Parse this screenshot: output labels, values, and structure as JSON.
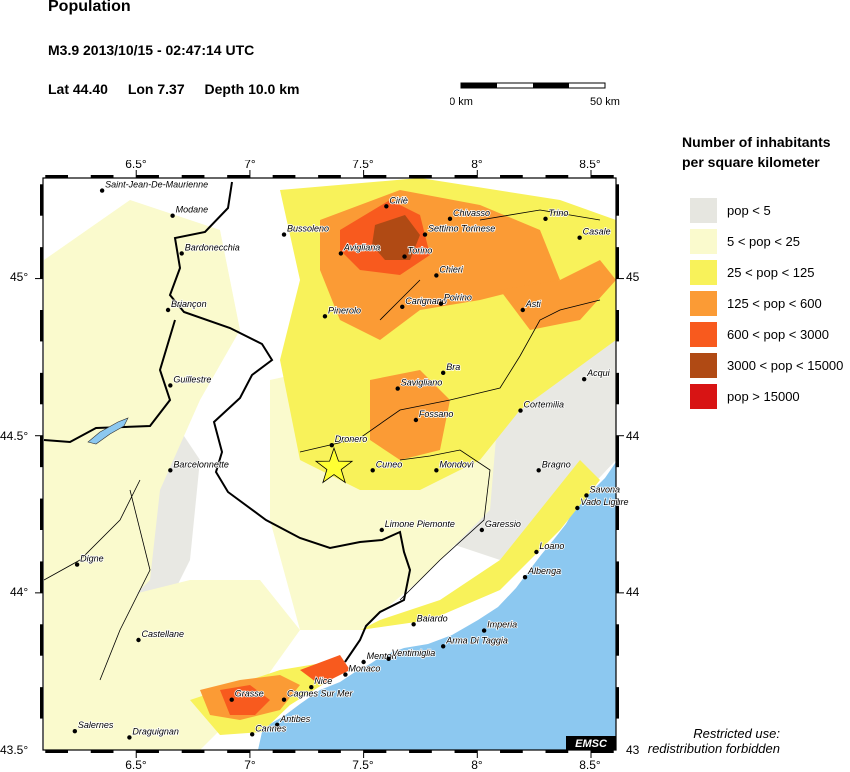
{
  "header": {
    "title": "Population",
    "event": "M3.9  2013/10/15 - 02:47:14 UTC",
    "lat": "Lat 44.40",
    "lon": "Lon  7.37",
    "depth": "Depth  10.0 km"
  },
  "scale": {
    "left_label": "0 km",
    "right_label": "50 km"
  },
  "legend": {
    "title_line1": "Number of inhabitants",
    "title_line2": "per square kilometer",
    "items": [
      {
        "label": "pop < 5",
        "color": "#e6e6e0"
      },
      {
        "label": "5 < pop < 25",
        "color": "#fafacd"
      },
      {
        "label": "25 < pop < 125",
        "color": "#f8f25a"
      },
      {
        "label": "125 < pop < 600",
        "color": "#fb9b35"
      },
      {
        "label": "600 < pop < 3000",
        "color": "#f85a1e"
      },
      {
        "label": "3000 < pop < 15000",
        "color": "#b04a14"
      },
      {
        "label": "pop > 15000",
        "color": "#d81414"
      }
    ]
  },
  "map": {
    "lon_ticks": [
      "6.5°",
      "7°",
      "7.5°",
      "8°",
      "8.5°"
    ],
    "lat_ticks": [
      "45°",
      "44.5°",
      "44°"
    ],
    "corner_label": "43.5°",
    "sea_color": "#8cc8f0",
    "epicenter": {
      "lat": 44.4,
      "lon": 7.37,
      "color": "#ffff33"
    },
    "watermark": "EMSC",
    "cities": [
      {
        "name": "Saint-Jean-De-Maurienne",
        "lon": 6.35,
        "lat": 45.28
      },
      {
        "name": "Modane",
        "lon": 6.66,
        "lat": 45.2
      },
      {
        "name": "Bussoleno",
        "lon": 7.15,
        "lat": 45.14
      },
      {
        "name": "Ciriè",
        "lon": 7.6,
        "lat": 45.23
      },
      {
        "name": "Chivasso",
        "lon": 7.88,
        "lat": 45.19
      },
      {
        "name": "Trino",
        "lon": 8.3,
        "lat": 45.19
      },
      {
        "name": "Settimo Torinese",
        "lon": 7.77,
        "lat": 45.14
      },
      {
        "name": "Casale",
        "lon": 8.45,
        "lat": 45.13
      },
      {
        "name": "Avigliana",
        "lon": 7.4,
        "lat": 45.08
      },
      {
        "name": "Torino",
        "lon": 7.68,
        "lat": 45.07
      },
      {
        "name": "Bardonecchia",
        "lon": 6.7,
        "lat": 45.08
      },
      {
        "name": "Chieri",
        "lon": 7.82,
        "lat": 45.01
      },
      {
        "name": "Briançon",
        "lon": 6.64,
        "lat": 44.9
      },
      {
        "name": "Pinerolo",
        "lon": 7.33,
        "lat": 44.88
      },
      {
        "name": "Carignano",
        "lon": 7.67,
        "lat": 44.91
      },
      {
        "name": "Poirino",
        "lon": 7.84,
        "lat": 44.92
      },
      {
        "name": "Asti",
        "lon": 8.2,
        "lat": 44.9
      },
      {
        "name": "Bra",
        "lon": 7.85,
        "lat": 44.7
      },
      {
        "name": "Guillestre",
        "lon": 6.65,
        "lat": 44.66
      },
      {
        "name": "Savigliano",
        "lon": 7.65,
        "lat": 44.65
      },
      {
        "name": "Acqui",
        "lon": 8.47,
        "lat": 44.68
      },
      {
        "name": "Cortemilia",
        "lon": 8.19,
        "lat": 44.58
      },
      {
        "name": "Fossano",
        "lon": 7.73,
        "lat": 44.55
      },
      {
        "name": "Dronero",
        "lon": 7.36,
        "lat": 44.47
      },
      {
        "name": "Cuneo",
        "lon": 7.54,
        "lat": 44.39
      },
      {
        "name": "Mondovì",
        "lon": 7.82,
        "lat": 44.39
      },
      {
        "name": "Barcelonnette",
        "lon": 6.65,
        "lat": 44.39
      },
      {
        "name": "Bragno",
        "lon": 8.27,
        "lat": 44.39
      },
      {
        "name": "Savona",
        "lon": 8.48,
        "lat": 44.31
      },
      {
        "name": "Vado Ligure",
        "lon": 8.44,
        "lat": 44.27
      },
      {
        "name": "Limone Piemonte",
        "lon": 7.58,
        "lat": 44.2
      },
      {
        "name": "Garessio",
        "lon": 8.02,
        "lat": 44.2
      },
      {
        "name": "Loano",
        "lon": 8.26,
        "lat": 44.13
      },
      {
        "name": "Digne",
        "lon": 6.24,
        "lat": 44.09
      },
      {
        "name": "Albenga",
        "lon": 8.21,
        "lat": 44.05
      },
      {
        "name": "Baiardo",
        "lon": 7.72,
        "lat": 43.9
      },
      {
        "name": "Imperia",
        "lon": 8.03,
        "lat": 43.88
      },
      {
        "name": "Castellane",
        "lon": 6.51,
        "lat": 43.85
      },
      {
        "name": "Arma Di Taggia",
        "lon": 7.85,
        "lat": 43.83
      },
      {
        "name": "Menton",
        "lon": 7.5,
        "lat": 43.78
      },
      {
        "name": "Ventimiglia",
        "lon": 7.61,
        "lat": 43.79
      },
      {
        "name": "Monaco",
        "lon": 7.42,
        "lat": 43.74
      },
      {
        "name": "Nice",
        "lon": 7.27,
        "lat": 43.7
      },
      {
        "name": "Grasse",
        "lon": 6.92,
        "lat": 43.66
      },
      {
        "name": "Cagnes Sur Mer",
        "lon": 7.15,
        "lat": 43.66
      },
      {
        "name": "Antibes",
        "lon": 7.12,
        "lat": 43.58
      },
      {
        "name": "Cannes",
        "lon": 7.01,
        "lat": 43.55
      },
      {
        "name": "Salernes",
        "lon": 6.23,
        "lat": 43.56
      },
      {
        "name": "Draguignan",
        "lon": 6.47,
        "lat": 43.54
      }
    ]
  },
  "footer": {
    "restricted_line1": "Restricted use:",
    "restricted_line2": "redistribution forbidden"
  }
}
